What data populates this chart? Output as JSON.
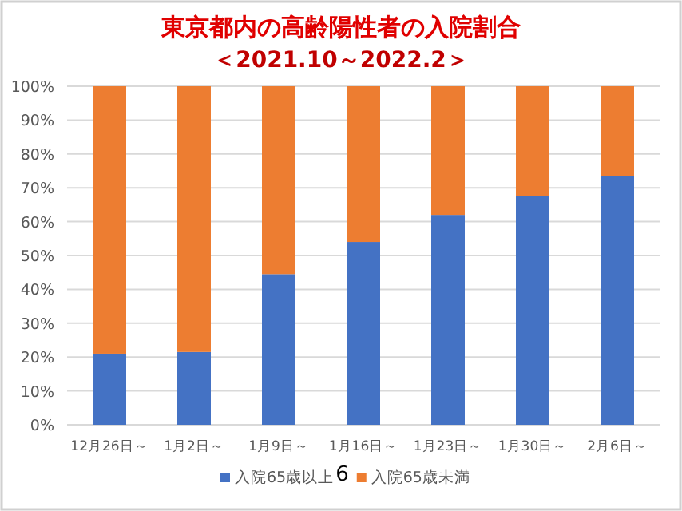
{
  "chart_data": {
    "type": "bar",
    "stacked": true,
    "title": "東京都内の高齢陽性者の入院割合",
    "subtitle": "＜2021.10～2022.2＞",
    "categories": [
      "12月26日～",
      "1月2日～",
      "1月9日～",
      "1月16日～",
      "1月23日～",
      "1月30日～",
      "2月6日～"
    ],
    "series": [
      {
        "name": "入院65歳以上",
        "color": "#4472c4",
        "values": [
          21,
          21.5,
          44.5,
          54,
          62,
          67.5,
          73.5
        ]
      },
      {
        "name": "入院65歳未満",
        "color": "#ed7d31",
        "values": [
          79,
          78.5,
          55.5,
          46,
          38,
          32.5,
          26.5
        ]
      }
    ],
    "ylim": [
      0,
      100
    ],
    "yticks": [
      {
        "value": 0,
        "label": "0%"
      },
      {
        "value": 10,
        "label": "10%"
      },
      {
        "value": 20,
        "label": "20%"
      },
      {
        "value": 30,
        "label": "30%"
      },
      {
        "value": 40,
        "label": "40%"
      },
      {
        "value": 50,
        "label": "50%"
      },
      {
        "value": 60,
        "label": "60%"
      },
      {
        "value": 70,
        "label": "70%"
      },
      {
        "value": 80,
        "label": "80%"
      },
      {
        "value": 90,
        "label": "90%"
      },
      {
        "value": 100,
        "label": "100%"
      }
    ],
    "grid": "y",
    "legend": "bottom",
    "annotations": [
      "6"
    ]
  }
}
